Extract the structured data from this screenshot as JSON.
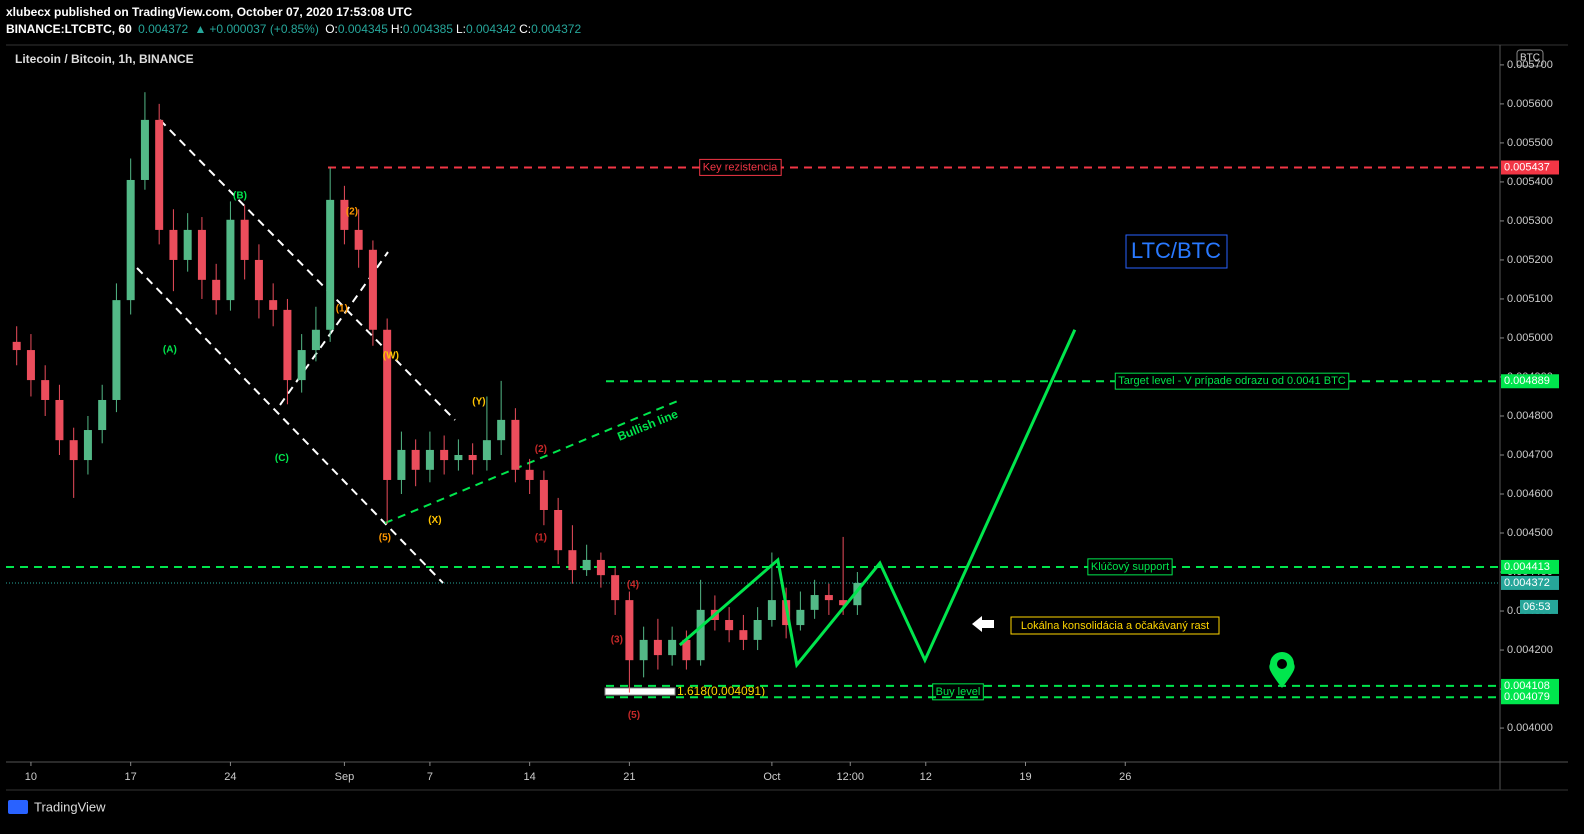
{
  "header": {
    "published": "xlubecx published on TradingView.com, October 07, 2020 17:53:08 UTC",
    "symbol": "BINANCE:LTCBTC, 60",
    "last": "0.004372",
    "change": "+0.000037 (+0.85%)",
    "ohlc": [
      {
        "label": "O:",
        "value": "0.004345"
      },
      {
        "label": "H:",
        "value": "0.004385"
      },
      {
        "label": "L:",
        "value": "0.004342"
      },
      {
        "label": "C:",
        "value": "0.004372"
      }
    ]
  },
  "footer": {
    "brand": "TradingView"
  },
  "chart_data": {
    "type": "candlestick",
    "title": "Litecoin / Bitcoin, 1h, BINANCE",
    "watermark": "LTC/BTC",
    "currency": "BTC",
    "countdown": "06:53",
    "x": [
      -1,
      0,
      1,
      2,
      3,
      4,
      5,
      6,
      7,
      8,
      9,
      10,
      11,
      12,
      13,
      14,
      15,
      16,
      17,
      18,
      19,
      20,
      21,
      22,
      23,
      24,
      25,
      26,
      27,
      28,
      29,
      30,
      31,
      32,
      33,
      34,
      35,
      36,
      37,
      38,
      39,
      40,
      41,
      42,
      43,
      44,
      45,
      46,
      47,
      48,
      49,
      50,
      51,
      52,
      53,
      54,
      55,
      56,
      57,
      58
    ],
    "series": [
      {
        "name": "LTCBTC",
        "up_color": "#53b987",
        "down_color": "#eb4d5c",
        "open": [
          0.00499,
          0.004969,
          0.004892,
          0.004841,
          0.004738,
          0.004687,
          0.004764,
          0.004841,
          0.005097,
          0.005405,
          0.005559,
          0.005277,
          0.0052,
          0.005277,
          0.005149,
          0.005097,
          0.005303,
          0.0052,
          0.005097,
          0.005072,
          0.004892,
          0.004969,
          0.005021,
          0.005354,
          0.005277,
          0.005226,
          0.005021,
          0.004636,
          0.004713,
          0.004662,
          0.004713,
          0.004687,
          0.0047,
          0.004687,
          0.004738,
          0.00479,
          0.004662,
          0.004636,
          0.004559,
          0.004456,
          0.004405,
          0.004431,
          0.004392,
          0.004328,
          0.004174,
          0.004226,
          0.004187,
          0.004226,
          0.004174,
          0.004303,
          0.004277,
          0.004251,
          0.004226,
          0.004277,
          0.004328,
          0.004264,
          0.004303,
          0.004341,
          0.004328,
          0.004315
        ],
        "high": [
          0.00503,
          0.00501,
          0.00493,
          0.00488,
          0.00477,
          0.0048,
          0.00488,
          0.00514,
          0.00546,
          0.00563,
          0.0056,
          0.00533,
          0.00532,
          0.00531,
          0.00519,
          0.00535,
          0.00534,
          0.00524,
          0.00514,
          0.0051,
          0.00501,
          0.00508,
          0.005437,
          0.00539,
          0.00533,
          0.00525,
          0.00505,
          0.00476,
          0.00474,
          0.00476,
          0.00475,
          0.00474,
          0.00473,
          0.00485,
          0.00489,
          0.00482,
          0.00469,
          0.00466,
          0.00459,
          0.00452,
          0.00447,
          0.00445,
          0.00441,
          0.00435,
          0.00426,
          0.00428,
          0.00426,
          0.00425,
          0.00438,
          0.00434,
          0.00431,
          0.00429,
          0.00431,
          0.00445,
          0.00436,
          0.00435,
          0.00438,
          0.00437,
          0.00449,
          0.0044
        ],
        "low": [
          0.00493,
          0.00485,
          0.0048,
          0.0047,
          0.00459,
          0.00465,
          0.00473,
          0.00481,
          0.00506,
          0.00538,
          0.00524,
          0.00512,
          0.00517,
          0.0051,
          0.00506,
          0.00507,
          0.00515,
          0.00505,
          0.00503,
          0.00483,
          0.00486,
          0.00494,
          0.00499,
          0.00524,
          0.00518,
          0.00498,
          0.004523,
          0.0046,
          0.00462,
          0.00463,
          0.00465,
          0.00466,
          0.00465,
          0.00466,
          0.0047,
          0.00463,
          0.0046,
          0.00452,
          0.00442,
          0.00437,
          0.00439,
          0.00436,
          0.00429,
          0.004091,
          0.00413,
          0.00415,
          0.00416,
          0.00415,
          0.00416,
          0.00425,
          0.00422,
          0.0042,
          0.0042,
          0.00426,
          0.00423,
          0.00425,
          0.00428,
          0.00429,
          0.00429,
          0.00429
        ],
        "close": [
          0.004969,
          0.004892,
          0.004841,
          0.004738,
          0.004687,
          0.004764,
          0.004841,
          0.005097,
          0.005405,
          0.005559,
          0.005277,
          0.0052,
          0.005277,
          0.005149,
          0.005097,
          0.005303,
          0.0052,
          0.005097,
          0.005072,
          0.004892,
          0.004969,
          0.005021,
          0.005354,
          0.005277,
          0.005226,
          0.005021,
          0.004636,
          0.004713,
          0.004662,
          0.004713,
          0.004687,
          0.0047,
          0.004687,
          0.004738,
          0.00479,
          0.004662,
          0.004636,
          0.004559,
          0.004456,
          0.004405,
          0.004431,
          0.004392,
          0.004328,
          0.004174,
          0.004226,
          0.004187,
          0.004226,
          0.004174,
          0.004303,
          0.004277,
          0.004251,
          0.004226,
          0.004277,
          0.004328,
          0.004264,
          0.004303,
          0.004341,
          0.004328,
          0.004315,
          0.004372
        ]
      }
    ],
    "projection": {
      "color": "#00e64d",
      "x": [
        45.54,
        52.42,
        53.75,
        59.58,
        62.74,
        73.26
      ],
      "values": [
        0.004213,
        0.004431,
        0.004162,
        0.004423,
        0.004174,
        0.005021
      ]
    },
    "levels": [
      {
        "value": 0.005437,
        "label": "Key rezistencia",
        "color": "#f23645"
      },
      {
        "value": 0.004889,
        "label": "Target level - V prípade odrazu od 0.0041 BTC",
        "color": "#00e64d"
      },
      {
        "value": 0.004413,
        "label": "Klúčový support",
        "color": "#00e64d"
      },
      {
        "value": 0.004372,
        "color": "#26a69a"
      },
      {
        "value": 0.004108,
        "label": "Buy level",
        "color": "#00e64d"
      },
      {
        "value": 0.004079,
        "color": "#00e64d"
      }
    ],
    "annotations": {
      "bullish": "Bullish line",
      "note": "Lokálna konsolidácia a očakávaný rast",
      "fib": "1.618(0.004091)"
    },
    "wave_labels": [
      {
        "label": "(B)",
        "x": 14.67,
        "y": 0.005364,
        "color": "#00e64d"
      },
      {
        "label": "(A)",
        "x": 9.75,
        "y": 0.004969,
        "color": "#00e64d"
      },
      {
        "label": "(C)",
        "x": 17.61,
        "y": 0.004692,
        "color": "#00e64d"
      },
      {
        "label": "(2)",
        "x": 22.53,
        "y": 0.005323,
        "color": "#ff9800"
      },
      {
        "label": "(1)",
        "x": 21.82,
        "y": 0.005074,
        "color": "#ff9800"
      },
      {
        "label": "(W)",
        "x": 25.26,
        "y": 0.004954,
        "color": "#ffc400"
      },
      {
        "label": "(Y)",
        "x": 31.44,
        "y": 0.004836,
        "color": "#ffc400"
      },
      {
        "label": "(X)",
        "x": 28.35,
        "y": 0.004533,
        "color": "#ffc400"
      },
      {
        "label": "(5)",
        "x": 24.84,
        "y": 0.004487,
        "color": "#ff9800"
      },
      {
        "label": "(2)",
        "x": 35.79,
        "y": 0.004715,
        "color": "#c62828"
      },
      {
        "label": "(1)",
        "x": 35.79,
        "y": 0.004487,
        "color": "#c62828"
      },
      {
        "label": "(4)",
        "x": 42.25,
        "y": 0.004367,
        "color": "#c62828"
      },
      {
        "label": "(3)",
        "x": 41.12,
        "y": 0.004226,
        "color": "#c62828"
      },
      {
        "label": "(5)",
        "x": 42.32,
        "y": 0.004033,
        "color": "#c62828"
      }
    ],
    "xlim": [
      -1.75,
      103.1
    ],
    "ylim": [
      0.003913,
      0.005751
    ],
    "xticks": [
      {
        "value": 0,
        "label": "10"
      },
      {
        "value": 7,
        "label": "17"
      },
      {
        "value": 14,
        "label": "24"
      },
      {
        "value": 22,
        "label": "Sep"
      },
      {
        "value": 28,
        "label": "7"
      },
      {
        "value": 35,
        "label": "14"
      },
      {
        "value": 42,
        "label": "21"
      },
      {
        "value": 52,
        "label": "Oct"
      },
      {
        "value": 57.5,
        "label": "12:00"
      },
      {
        "value": 62.8,
        "label": "12"
      },
      {
        "value": 69.8,
        "label": "19"
      },
      {
        "value": 76.8,
        "label": "26"
      }
    ],
    "yticks": [
      {
        "value": 0.004,
        "label": "0.004000"
      },
      {
        "value": 0.0041,
        "label": "0.004100"
      },
      {
        "value": 0.0042,
        "label": "0.004200"
      },
      {
        "value": 0.0043,
        "label": "0.004300"
      },
      {
        "value": 0.0044,
        "label": "0.004400"
      },
      {
        "value": 0.0045,
        "label": "0.004500"
      },
      {
        "value": 0.0046,
        "label": "0.004600"
      },
      {
        "value": 0.0047,
        "label": "0.004700"
      },
      {
        "value": 0.0048,
        "label": "0.004800"
      },
      {
        "value": 0.0049,
        "label": "0.004900"
      },
      {
        "value": 0.005,
        "label": "0.005000"
      },
      {
        "value": 0.0051,
        "label": "0.005100"
      },
      {
        "value": 0.0052,
        "label": "0.005200"
      },
      {
        "value": 0.0053,
        "label": "0.005300"
      },
      {
        "value": 0.0054,
        "label": "0.005400"
      },
      {
        "value": 0.0055,
        "label": "0.005500"
      },
      {
        "value": 0.0056,
        "label": "0.005600"
      },
      {
        "value": 0.0057,
        "label": "0.005700"
      }
    ],
    "grid": false
  }
}
